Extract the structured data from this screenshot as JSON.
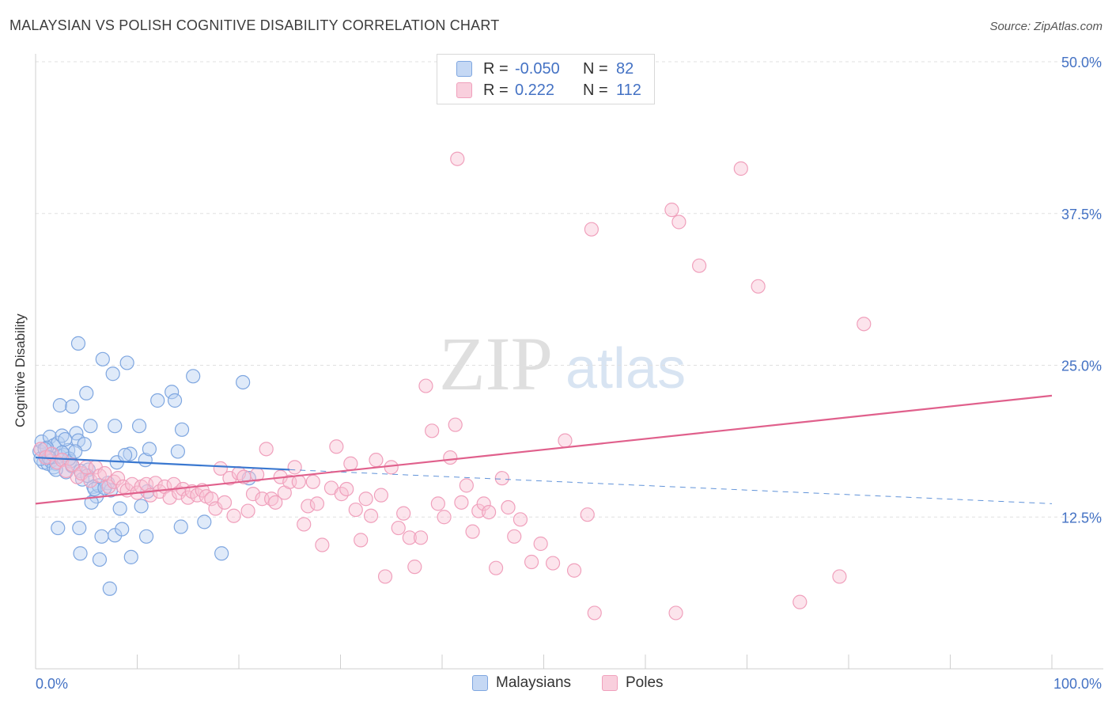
{
  "title": "MALAYSIAN VS POLISH COGNITIVE DISABILITY CORRELATION CHART",
  "source": "Source: ZipAtlas.com",
  "watermark": {
    "zip": "ZIP",
    "atlas": "atlas"
  },
  "legend": {
    "rows": [
      {
        "r_label": "R =",
        "r_value": "-0.050",
        "n_label": "N =",
        "n_value": "82",
        "color": "#7ea6e0"
      },
      {
        "r_label": "R =",
        "r_value": "0.222",
        "n_label": "N =",
        "n_value": "112",
        "color": "#f0a0bc"
      }
    ]
  },
  "bottom_legend": [
    "Malaysians",
    "Poles"
  ],
  "chart_data": {
    "type": "scatter",
    "title": "MALAYSIAN VS POLISH COGNITIVE DISABILITY CORRELATION CHART",
    "ylabel": "Cognitive Disability",
    "xlabel": "",
    "xlim": [
      0,
      100
    ],
    "ylim": [
      0,
      50
    ],
    "x_tick_labels": [
      "0.0%",
      "100.0%"
    ],
    "y_ticks": [
      12.5,
      25.0,
      37.5,
      50.0
    ],
    "y_tick_labels": [
      "12.5%",
      "25.0%",
      "37.5%",
      "50.0%"
    ],
    "grid": "horizontal dashed",
    "legend_position": "top-center",
    "series": [
      {
        "name": "Malaysians",
        "color": "#7ea6e0",
        "line_color": "#3a78d0",
        "trend": {
          "x": [
            0,
            25
          ],
          "y": [
            17.4,
            16.4
          ],
          "dashed_extension": {
            "x": [
              25,
              100
            ],
            "y": [
              16.4,
              13.6
            ]
          }
        },
        "points": [
          [
            0.4,
            17.9
          ],
          [
            0.6,
            18.7
          ],
          [
            0.8,
            17.0
          ],
          [
            1.0,
            17.5
          ],
          [
            1.2,
            16.9
          ],
          [
            1.4,
            19.1
          ],
          [
            1.6,
            17.7
          ],
          [
            1.8,
            18.4
          ],
          [
            2.0,
            16.9
          ],
          [
            2.2,
            18.6
          ],
          [
            2.4,
            17.5
          ],
          [
            2.6,
            19.2
          ],
          [
            2.8,
            17.6
          ],
          [
            3.0,
            16.2
          ],
          [
            3.2,
            18.0
          ],
          [
            3.4,
            17.1
          ],
          [
            3.6,
            16.7
          ],
          [
            4.0,
            19.4
          ],
          [
            4.2,
            18.8
          ],
          [
            4.4,
            16.3
          ],
          [
            2.4,
            21.7
          ],
          [
            3.6,
            21.6
          ],
          [
            4.2,
            26.8
          ],
          [
            5.0,
            22.7
          ],
          [
            5.4,
            20.0
          ],
          [
            5.7,
            15.0
          ],
          [
            6.0,
            14.2
          ],
          [
            4.6,
            15.6
          ],
          [
            5.2,
            16.4
          ],
          [
            5.5,
            13.7
          ],
          [
            6.6,
            25.5
          ],
          [
            7.6,
            24.3
          ],
          [
            7.8,
            20.0
          ],
          [
            8.0,
            17.0
          ],
          [
            8.3,
            13.2
          ],
          [
            9.0,
            25.2
          ],
          [
            9.3,
            17.7
          ],
          [
            10.2,
            20.0
          ],
          [
            10.4,
            13.4
          ],
          [
            10.8,
            17.2
          ],
          [
            11.0,
            14.6
          ],
          [
            11.2,
            18.1
          ],
          [
            12.0,
            22.1
          ],
          [
            13.4,
            22.8
          ],
          [
            13.7,
            22.1
          ],
          [
            14.0,
            17.9
          ],
          [
            14.4,
            19.7
          ],
          [
            15.5,
            24.1
          ],
          [
            20.4,
            23.6
          ],
          [
            21.0,
            15.7
          ],
          [
            2.2,
            11.6
          ],
          [
            4.3,
            11.6
          ],
          [
            4.4,
            9.5
          ],
          [
            6.3,
            9.0
          ],
          [
            6.5,
            10.9
          ],
          [
            7.8,
            11.0
          ],
          [
            8.5,
            11.5
          ],
          [
            9.4,
            9.2
          ],
          [
            10.9,
            10.9
          ],
          [
            14.3,
            11.7
          ],
          [
            16.6,
            12.1
          ],
          [
            18.3,
            9.5
          ],
          [
            7.3,
            6.6
          ],
          [
            0.5,
            17.3
          ],
          [
            1.1,
            18.2
          ],
          [
            1.5,
            17.1
          ],
          [
            2.9,
            18.9
          ],
          [
            3.3,
            17.3
          ],
          [
            4.8,
            18.5
          ],
          [
            5.1,
            15.9
          ],
          [
            6.2,
            15.1
          ],
          [
            7.1,
            15.3
          ],
          [
            7.4,
            14.7
          ],
          [
            1.8,
            16.6
          ],
          [
            2.6,
            17.8
          ],
          [
            3.9,
            17.9
          ],
          [
            0.9,
            18.1
          ],
          [
            1.3,
            17.4
          ],
          [
            2.0,
            16.4
          ],
          [
            5.8,
            14.8
          ],
          [
            6.8,
            14.9
          ],
          [
            8.8,
            17.6
          ]
        ]
      },
      {
        "name": "Poles",
        "color": "#f0a0bc",
        "line_color": "#e0608c",
        "trend": {
          "x": [
            0,
            100
          ],
          "y": [
            13.6,
            22.5
          ]
        },
        "points": [
          [
            0.5,
            18.1
          ],
          [
            1.0,
            17.4
          ],
          [
            1.6,
            17.7
          ],
          [
            2.1,
            17.0
          ],
          [
            2.6,
            17.2
          ],
          [
            3.0,
            16.3
          ],
          [
            3.6,
            16.8
          ],
          [
            4.1,
            15.8
          ],
          [
            4.5,
            16.1
          ],
          [
            5.0,
            16.6
          ],
          [
            5.4,
            15.5
          ],
          [
            5.9,
            16.6
          ],
          [
            6.3,
            15.9
          ],
          [
            6.8,
            16.1
          ],
          [
            7.2,
            15.0
          ],
          [
            7.7,
            15.4
          ],
          [
            8.1,
            15.7
          ],
          [
            8.6,
            15.0
          ],
          [
            9.0,
            14.7
          ],
          [
            9.5,
            15.2
          ],
          [
            10.0,
            14.5
          ],
          [
            10.4,
            15.0
          ],
          [
            10.9,
            15.2
          ],
          [
            11.3,
            14.3
          ],
          [
            11.8,
            15.3
          ],
          [
            12.2,
            14.6
          ],
          [
            12.7,
            15.0
          ],
          [
            13.2,
            14.1
          ],
          [
            13.6,
            15.2
          ],
          [
            14.1,
            14.5
          ],
          [
            14.5,
            14.8
          ],
          [
            15.0,
            14.1
          ],
          [
            15.4,
            14.6
          ],
          [
            15.9,
            14.3
          ],
          [
            16.4,
            14.7
          ],
          [
            16.8,
            14.2
          ],
          [
            17.3,
            14.0
          ],
          [
            17.7,
            13.2
          ],
          [
            18.2,
            16.5
          ],
          [
            18.6,
            13.7
          ],
          [
            19.1,
            15.7
          ],
          [
            19.5,
            12.6
          ],
          [
            20.0,
            16.1
          ],
          [
            20.5,
            15.8
          ],
          [
            20.9,
            13.0
          ],
          [
            21.4,
            14.4
          ],
          [
            21.8,
            16.0
          ],
          [
            22.3,
            14.0
          ],
          [
            22.7,
            18.1
          ],
          [
            23.2,
            14.0
          ],
          [
            23.6,
            13.7
          ],
          [
            24.1,
            15.8
          ],
          [
            24.5,
            14.5
          ],
          [
            25.0,
            15.4
          ],
          [
            25.5,
            16.6
          ],
          [
            25.9,
            15.4
          ],
          [
            26.4,
            11.9
          ],
          [
            26.8,
            13.4
          ],
          [
            27.3,
            15.4
          ],
          [
            27.7,
            13.6
          ],
          [
            28.2,
            10.2
          ],
          [
            29.1,
            14.9
          ],
          [
            29.6,
            18.3
          ],
          [
            30.1,
            14.4
          ],
          [
            30.6,
            14.8
          ],
          [
            31.0,
            16.9
          ],
          [
            31.5,
            13.1
          ],
          [
            32.0,
            10.6
          ],
          [
            32.5,
            14.0
          ],
          [
            33.0,
            12.6
          ],
          [
            33.5,
            17.2
          ],
          [
            34.0,
            14.3
          ],
          [
            34.4,
            7.6
          ],
          [
            35.0,
            16.6
          ],
          [
            35.7,
            11.6
          ],
          [
            36.2,
            12.8
          ],
          [
            36.8,
            10.8
          ],
          [
            37.3,
            8.4
          ],
          [
            37.9,
            10.8
          ],
          [
            38.4,
            23.3
          ],
          [
            39.0,
            19.6
          ],
          [
            39.6,
            13.6
          ],
          [
            40.2,
            12.5
          ],
          [
            40.8,
            17.4
          ],
          [
            41.3,
            20.1
          ],
          [
            41.9,
            13.7
          ],
          [
            42.4,
            15.1
          ],
          [
            43.0,
            11.3
          ],
          [
            43.6,
            13.0
          ],
          [
            44.1,
            13.6
          ],
          [
            44.6,
            12.9
          ],
          [
            45.3,
            8.3
          ],
          [
            45.9,
            15.7
          ],
          [
            46.5,
            13.3
          ],
          [
            47.1,
            10.9
          ],
          [
            47.7,
            12.3
          ],
          [
            48.8,
            8.8
          ],
          [
            49.7,
            10.3
          ],
          [
            50.9,
            8.7
          ],
          [
            52.1,
            18.8
          ],
          [
            53.0,
            8.1
          ],
          [
            54.3,
            12.7
          ],
          [
            41.5,
            42.0
          ],
          [
            54.7,
            36.2
          ],
          [
            62.6,
            37.8
          ],
          [
            63.3,
            36.8
          ],
          [
            65.3,
            33.2
          ],
          [
            69.4,
            41.2
          ],
          [
            71.1,
            31.5
          ],
          [
            81.5,
            28.4
          ],
          [
            55.0,
            4.6
          ],
          [
            63.0,
            4.6
          ],
          [
            75.2,
            5.5
          ],
          [
            79.1,
            7.6
          ]
        ]
      }
    ]
  }
}
